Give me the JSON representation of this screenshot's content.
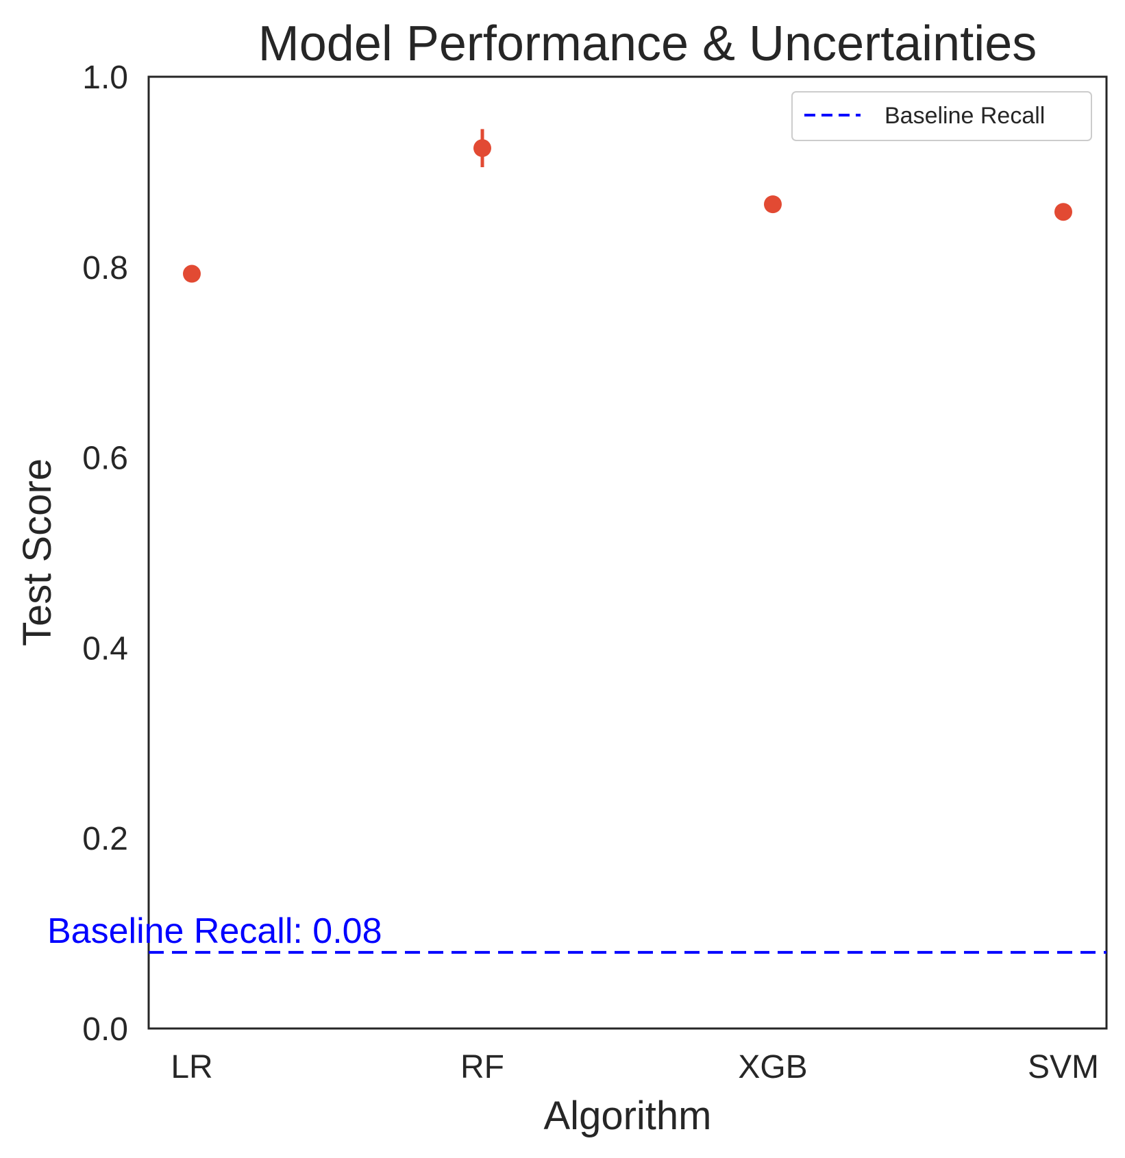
{
  "chart_data": {
    "type": "scatter",
    "title": "Model Performance & Uncertainties",
    "xlabel": "Algorithm",
    "ylabel": "Test Score",
    "ylim": [
      0.0,
      1.0
    ],
    "yticks": [
      "0.0",
      "0.2",
      "0.4",
      "0.6",
      "0.8",
      "1.0"
    ],
    "categories": [
      "LR",
      "RF",
      "XGB",
      "SVM"
    ],
    "values": [
      0.793,
      0.925,
      0.866,
      0.858
    ],
    "errors": [
      0.0,
      0.02,
      0.0,
      0.0
    ],
    "point_color": "#e24a33",
    "baseline": {
      "value": 0.08,
      "color": "#0000ff",
      "legend_label": "Baseline Recall",
      "annotation": "Baseline Recall: 0.08"
    },
    "legend_position": "top-right",
    "grid": false
  }
}
